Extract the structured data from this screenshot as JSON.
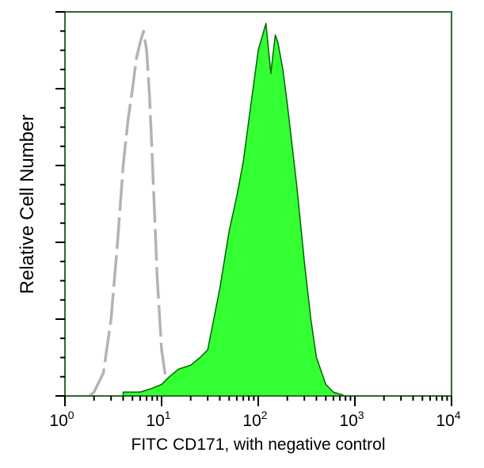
{
  "chart_data": {
    "type": "area",
    "title": "",
    "xlabel": "FITC  CD171, with negative control",
    "ylabel": "Relative Cell Number",
    "x_scale": "log",
    "xlim": [
      1,
      10000
    ],
    "ylim": [
      0,
      100
    ],
    "grid": false,
    "x_ticks": [
      {
        "base": "10",
        "exp": "0"
      },
      {
        "base": "10",
        "exp": "1"
      },
      {
        "base": "10",
        "exp": "2"
      },
      {
        "base": "10",
        "exp": "3"
      },
      {
        "base": "10",
        "exp": "4"
      }
    ],
    "series": [
      {
        "style": "dashed-outline",
        "color": "#b3b3b3",
        "x": [
          1.8,
          2,
          2.5,
          3,
          3.5,
          4,
          4.5,
          5,
          5.5,
          6,
          6.5,
          7,
          7.5,
          8,
          9,
          10,
          11,
          12,
          14,
          20
        ],
        "y": [
          0,
          1,
          6,
          20,
          40,
          60,
          72,
          80,
          88,
          92,
          95,
          90,
          78,
          62,
          31,
          12,
          5,
          2,
          1,
          0
        ]
      },
      {
        "style": "filled",
        "color": "#33ff33",
        "edge_color": "#006600",
        "x": [
          4,
          6,
          8,
          10,
          12,
          15,
          20,
          25,
          30,
          40,
          50,
          60,
          70,
          80,
          100,
          120,
          135,
          150,
          160,
          180,
          200,
          250,
          300,
          350,
          400,
          500,
          600,
          800
        ],
        "y": [
          1,
          1,
          2,
          3,
          5,
          7,
          8,
          10,
          12,
          28,
          43,
          52,
          61,
          72,
          90,
          97,
          84,
          94,
          92,
          85,
          76,
          55,
          35,
          20,
          10,
          3,
          1,
          0
        ]
      }
    ]
  },
  "colors": {
    "axis": "#2e6b2e",
    "control": "#b3b3b3",
    "sample_fill": "#33ff33",
    "sample_edge": "#006600"
  }
}
